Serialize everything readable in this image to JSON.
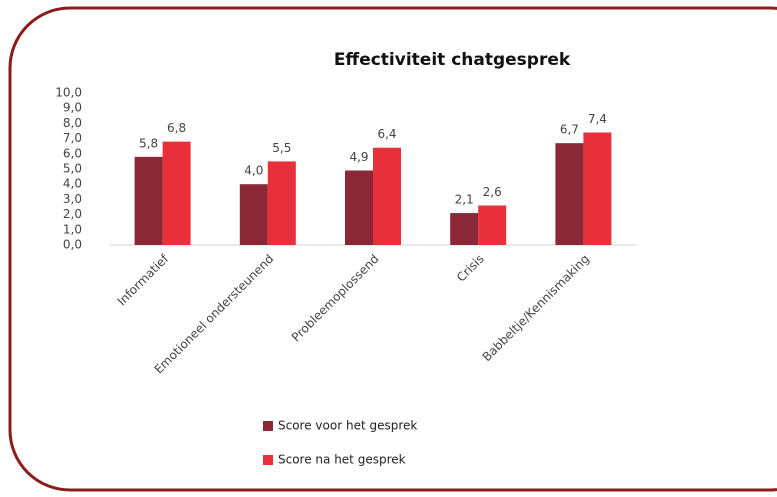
{
  "chart_data": {
    "type": "bar",
    "title": "Effectiviteit chatgesprek",
    "categories": [
      "Informatief",
      "Emotioneel ondersteunend",
      "Probleemoplossend",
      "Crisis",
      "Babbeltje/Kennismaking"
    ],
    "series": [
      {
        "name": "Score voor het gesprek",
        "color": "#8b2837",
        "values": [
          5.8,
          4.0,
          4.9,
          2.1,
          6.7
        ],
        "value_labels": [
          "5,8",
          "4,0",
          "4,9",
          "2,1",
          "6,7"
        ]
      },
      {
        "name": "Score na het gesprek",
        "color": "#e8303a",
        "values": [
          6.8,
          5.5,
          6.4,
          2.6,
          7.4
        ],
        "value_labels": [
          "6,8",
          "5,5",
          "6,4",
          "2,6",
          "7,4"
        ]
      }
    ],
    "ylim": [
      0,
      10
    ],
    "yticks": [
      {
        "value": 0,
        "label": "0,0"
      },
      {
        "value": 1,
        "label": "1,0"
      },
      {
        "value": 2,
        "label": "2,0"
      },
      {
        "value": 3,
        "label": "3,0"
      },
      {
        "value": 4,
        "label": "4,0"
      },
      {
        "value": 5,
        "label": "5,0"
      },
      {
        "value": 6,
        "label": "6,0"
      },
      {
        "value": 7,
        "label": "7,0"
      },
      {
        "value": 8,
        "label": "8,0"
      },
      {
        "value": 9,
        "label": "9,0"
      },
      {
        "value": 10,
        "label": "10,0"
      }
    ],
    "grid": false,
    "legend": "bottom"
  }
}
